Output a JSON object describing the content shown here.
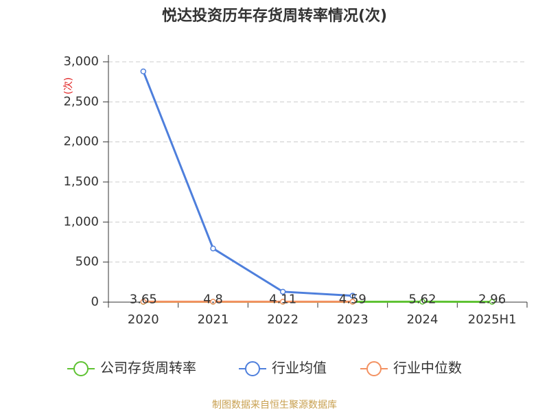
{
  "chart_data": {
    "type": "line",
    "title": "悦达投资历年存货周转率情况(次)",
    "y_label": "(次)",
    "source": "制图数据来自恒生聚源数据库",
    "categories": [
      "2020",
      "2021",
      "2022",
      "2023",
      "2024",
      "2025H1"
    ],
    "series": [
      {
        "name": "公司存货周转率",
        "color": "#5ec232",
        "values": [
          3.65,
          4.8,
          4.11,
          4.59,
          5.62,
          2.96
        ],
        "labels": true
      },
      {
        "name": "行业均值",
        "color": "#4e7fdc",
        "values": [
          2880,
          670,
          130,
          80,
          null,
          null
        ]
      },
      {
        "name": "行业中位数",
        "color": "#f39161",
        "values": [
          5,
          5,
          5,
          5,
          null,
          null
        ]
      }
    ],
    "ylim": [
      0,
      3000
    ],
    "yticks": [
      0,
      500,
      {
        "value": 1000,
        "label": "1,000"
      },
      {
        "value": 1500,
        "label": "1,500"
      },
      {
        "value": 2000,
        "label": "2,000"
      },
      {
        "value": 2500,
        "label": "2,500"
      },
      {
        "value": 3000,
        "label": "3,000"
      }
    ],
    "grid": true
  }
}
